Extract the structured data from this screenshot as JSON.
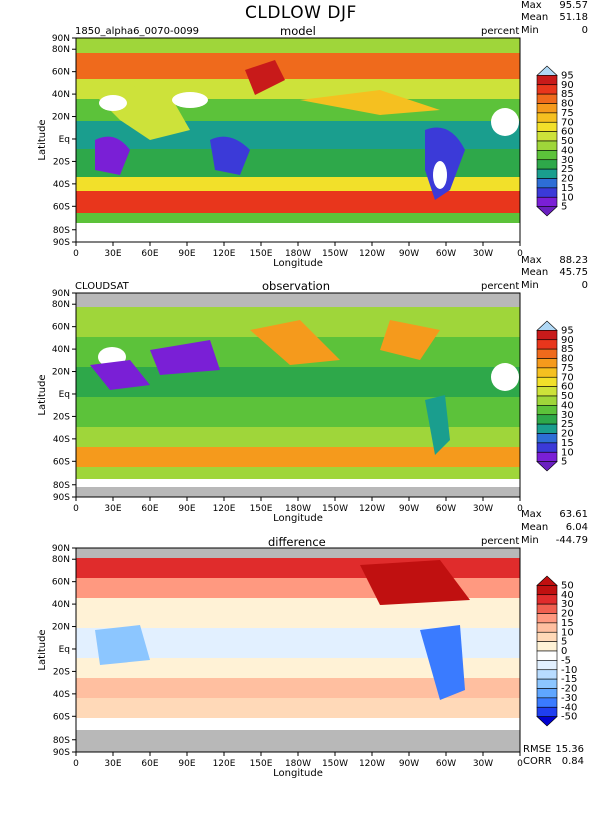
{
  "figure": {
    "title": "CLDLOW DJF",
    "x_axis_label": "Longitude",
    "y_axis_label": "Latitude",
    "lon_ticks": [
      "0",
      "30E",
      "60E",
      "90E",
      "120E",
      "150E",
      "180W",
      "150W",
      "120W",
      "90W",
      "60W",
      "30W",
      "0"
    ],
    "lat_ticks": [
      "90N",
      "80N",
      "60N",
      "40N",
      "20N",
      "Eq",
      "20S",
      "40S",
      "60S",
      "80S",
      "90S"
    ]
  },
  "panels": [
    {
      "left_label": "1850_alpha6_0070-0099",
      "center_label": "model",
      "units": "percent",
      "stats": {
        "max_label": "Max",
        "max": "95.57",
        "mean_label": "Mean",
        "mean": "51.18",
        "min_label": "Min",
        "min": "0"
      },
      "colorbar": [
        "95",
        "90",
        "85",
        "80",
        "75",
        "70",
        "60",
        "50",
        "40",
        "30",
        "25",
        "20",
        "15",
        "10",
        "5"
      ]
    },
    {
      "left_label": "CLOUDSAT",
      "center_label": "observation",
      "units": "percent",
      "stats": {
        "max_label": "Max",
        "max": "88.23",
        "mean_label": "Mean",
        "mean": "45.75",
        "min_label": "Min",
        "min": "0"
      },
      "colorbar": [
        "95",
        "90",
        "85",
        "80",
        "75",
        "70",
        "60",
        "50",
        "40",
        "30",
        "25",
        "20",
        "15",
        "10",
        "5"
      ]
    },
    {
      "left_label": "",
      "center_label": "difference",
      "units": "percent",
      "stats": {
        "max_label": "Max",
        "max": "63.61",
        "mean_label": "Mean",
        "mean": "6.04",
        "min_label": "Min",
        "min": "-44.79"
      },
      "colorbar": [
        "50",
        "40",
        "30",
        "20",
        "15",
        "10",
        "5",
        "0",
        "-5",
        "-10",
        "-15",
        "-20",
        "-30",
        "-40",
        "-50"
      ],
      "rmse_label": "RMSE",
      "rmse": "15.36",
      "corr_label": "CORR",
      "corr": "0.84"
    }
  ],
  "colors": {
    "seq": [
      "#ffffff",
      "#7a1fd6",
      "#3b3ad8",
      "#2d6ed6",
      "#1a9e8e",
      "#2ea84a",
      "#5cc23a",
      "#9fd63a",
      "#cde23a",
      "#f2e02a",
      "#f5c020",
      "#f59a1c",
      "#ef6a1c",
      "#e8361c",
      "#c81a1a",
      "#b8b8b8"
    ],
    "div": [
      "#0000d0",
      "#1f3ff0",
      "#3a7bff",
      "#5fa6ff",
      "#8cc6ff",
      "#b8dcff",
      "#e2f0ff",
      "#ffffff",
      "#fff2d6",
      "#ffd9b8",
      "#ffbfa0",
      "#ff9980",
      "#f06050",
      "#e02c2c",
      "#c01010"
    ]
  }
}
